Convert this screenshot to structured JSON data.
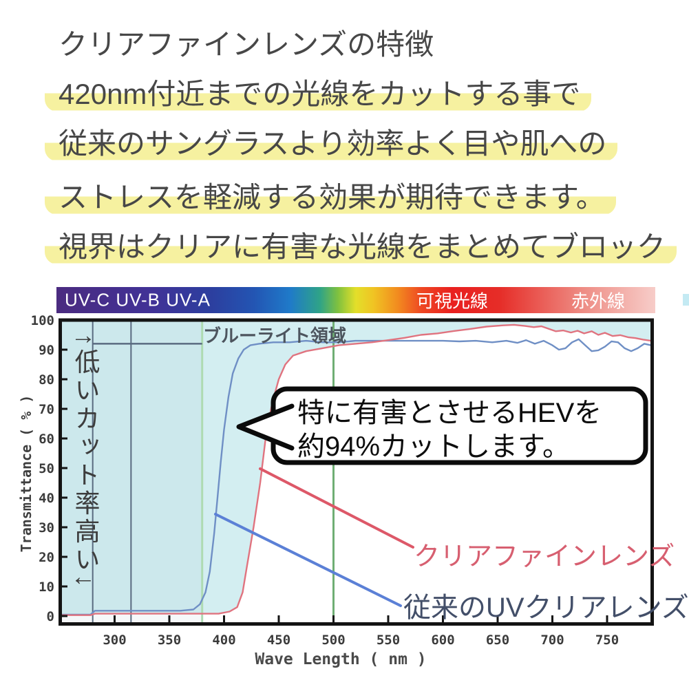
{
  "headline": {
    "text_color": "#474747",
    "highlight_color": "#f6f1a0",
    "lines": [
      {
        "text": "クリアファインレンズの特徴",
        "highlight": false
      },
      {
        "text": "420nm付近までの光線をカットする事で",
        "highlight": true
      },
      {
        "text": "従来のサングラスより効率よく目や肌への",
        "highlight": true
      },
      {
        "text": "ストレスを軽減する効果が期待できます。",
        "highlight": true
      },
      {
        "text": "視界はクリアに有害な光線をまとめてブロック",
        "highlight": true
      }
    ]
  },
  "spectrum_bar": {
    "uv_label": "UV-C UV-B UV-A",
    "visible_label": "可視光線",
    "infrared_label": "赤外線",
    "gradient_stops": [
      "#4b2b80 0%",
      "#413297 16%",
      "#2c3f9f 26%",
      "#2355b3 33%",
      "#1f7ac9 39%",
      "#2fa387 44%",
      "#7fc13f 47%",
      "#e3df2a 50%",
      "#f0c323 53%",
      "#f28b1f 57%",
      "#ee4723 61%",
      "#e9201f 66%",
      "#e62d28 74%",
      "#ee8d85 88%",
      "#f7cdc9 100%"
    ]
  },
  "chart_data": {
    "type": "line",
    "xlabel": "Wave Length ( nm )",
    "ylabel": "Transmittance ( % )",
    "xlim": [
      249,
      793
    ],
    "ylim": [
      0,
      100
    ],
    "x_ticks": [
      300,
      350,
      400,
      450,
      500,
      550,
      600,
      650,
      700,
      750
    ],
    "y_ticks": [
      0,
      10,
      20,
      30,
      40,
      50,
      60,
      70,
      80,
      90,
      100
    ],
    "grid": false,
    "legend_position": "inline-callouts",
    "plot_bg_above_curve": "#d3eef1",
    "annotations": {
      "blue_light_label": "ブルーライト領域",
      "blue_light_region_nm": [
        380,
        500
      ],
      "left_caption": "↑低いカット率高い↓",
      "bubble_line1": "特に有害とさせるHEVを",
      "bubble_line2": "約94%カットします。",
      "uv_boundary_lines_nm": [
        280,
        315
      ],
      "uv_boundary_color": "#5a6b80",
      "green_line_1_nm": 380,
      "green_line_1_color": "#aedbb2",
      "green_line_2_nm": 500,
      "green_line_2_color": "#6fae74",
      "h_line": {
        "pct": 92,
        "from_nm": 280,
        "to_nm": 380,
        "color": "#5a6b80"
      }
    },
    "series": [
      {
        "name": "クリアファインレンズ",
        "color": "#e0737f",
        "callout_color": "#dd5868",
        "x": [
          250,
          278,
          282,
          300,
          330,
          360,
          380,
          395,
          405,
          412,
          417,
          421,
          427,
          433,
          438,
          444,
          450,
          456,
          463,
          475,
          490,
          505,
          520,
          535,
          550,
          565,
          580,
          595,
          610,
          625,
          640,
          655,
          665,
          675,
          683,
          690,
          697,
          703,
          710,
          717,
          723,
          729,
          736,
          742,
          748,
          755,
          762,
          769,
          776,
          783,
          790
        ],
        "y": [
          0.3,
          0.3,
          0.8,
          0.8,
          0.8,
          0.8,
          0.8,
          0.8,
          1.5,
          3,
          8,
          17,
          30,
          45,
          60,
          72,
          80,
          85,
          88,
          89.5,
          90.5,
          91.5,
          92,
          92.5,
          93.2,
          94,
          95,
          95.5,
          96.3,
          97,
          97.8,
          98.2,
          98.4,
          98,
          97.6,
          97.9,
          97,
          96.2,
          96.5,
          95.8,
          96.4,
          95.5,
          96.2,
          95,
          95.7,
          94.6,
          94.9,
          94.2,
          93.9,
          93.4,
          93
        ]
      },
      {
        "name": "従来のUVクリアレンズ",
        "color": "#6f8fc5",
        "callout_color": "#5b80d6",
        "x": [
          250,
          278,
          282,
          300,
          320,
          340,
          360,
          372,
          378,
          383,
          387,
          391,
          394,
          397,
          400,
          404,
          408,
          413,
          418,
          424,
          432,
          445,
          460,
          475,
          490,
          505,
          520,
          540,
          560,
          580,
          600,
          615,
          630,
          645,
          658,
          668,
          676,
          684,
          692,
          700,
          706,
          712,
          718,
          724,
          730,
          736,
          742,
          748,
          754,
          760,
          766,
          772,
          778,
          784,
          790
        ],
        "y": [
          0.5,
          0.5,
          1.8,
          1.8,
          1.8,
          1.8,
          1.8,
          2.2,
          4,
          8,
          15,
          28,
          40,
          52,
          63,
          74,
          82,
          87,
          90,
          91.5,
          92,
          92.5,
          92.5,
          93,
          92.5,
          92.5,
          93,
          93,
          93,
          93,
          93,
          92.8,
          93,
          92.5,
          93,
          92.3,
          93.2,
          92,
          93,
          91.5,
          90,
          90.5,
          92.5,
          93.5,
          91.5,
          89.5,
          89.8,
          91,
          92.8,
          92.5,
          90.5,
          89.5,
          90.5,
          92,
          91.5
        ]
      }
    ]
  }
}
